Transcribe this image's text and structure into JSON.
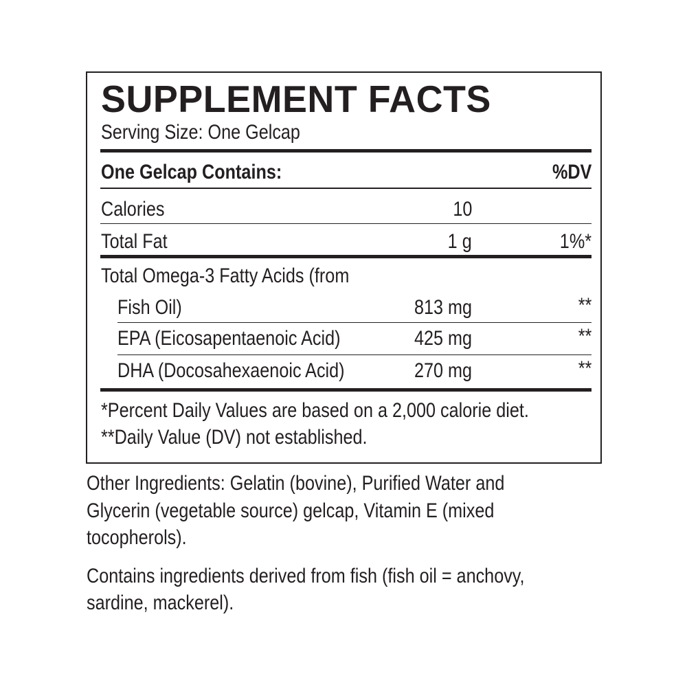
{
  "title": "SUPPLEMENT FACTS",
  "serving_size": "Serving Size: One Gelcap",
  "header": {
    "label": "One Gelcap Contains:",
    "dv": "%DV"
  },
  "rows": [
    {
      "name": "Calories",
      "amount": "10",
      "dv": ""
    },
    {
      "name": "Total Fat",
      "amount": "1 g",
      "dv": "1%*"
    },
    {
      "name": "Total Omega-3 Fatty Acids (from",
      "name_cont": "Fish Oil)",
      "amount": "813 mg",
      "dv": "**"
    },
    {
      "name": "EPA (Eicosapentaenoic Acid)",
      "amount": "425 mg",
      "dv": "**"
    },
    {
      "name": "DHA (Docosahexaenoic Acid)",
      "amount": "270 mg",
      "dv": "**"
    }
  ],
  "footnotes": [
    "*Percent Daily Values are based on a 2,000 calorie diet.",
    "**Daily Value (DV) not established."
  ],
  "other_ingredients": [
    "Other Ingredients: Gelatin (bovine), Purified Water and",
    "Glycerin (vegetable source) gelcap, Vitamin E (mixed",
    "tocopherols)."
  ],
  "allergen": [
    "Contains ingredients derived from fish (fish oil = anchovy,",
    "sardine, mackerel)."
  ]
}
